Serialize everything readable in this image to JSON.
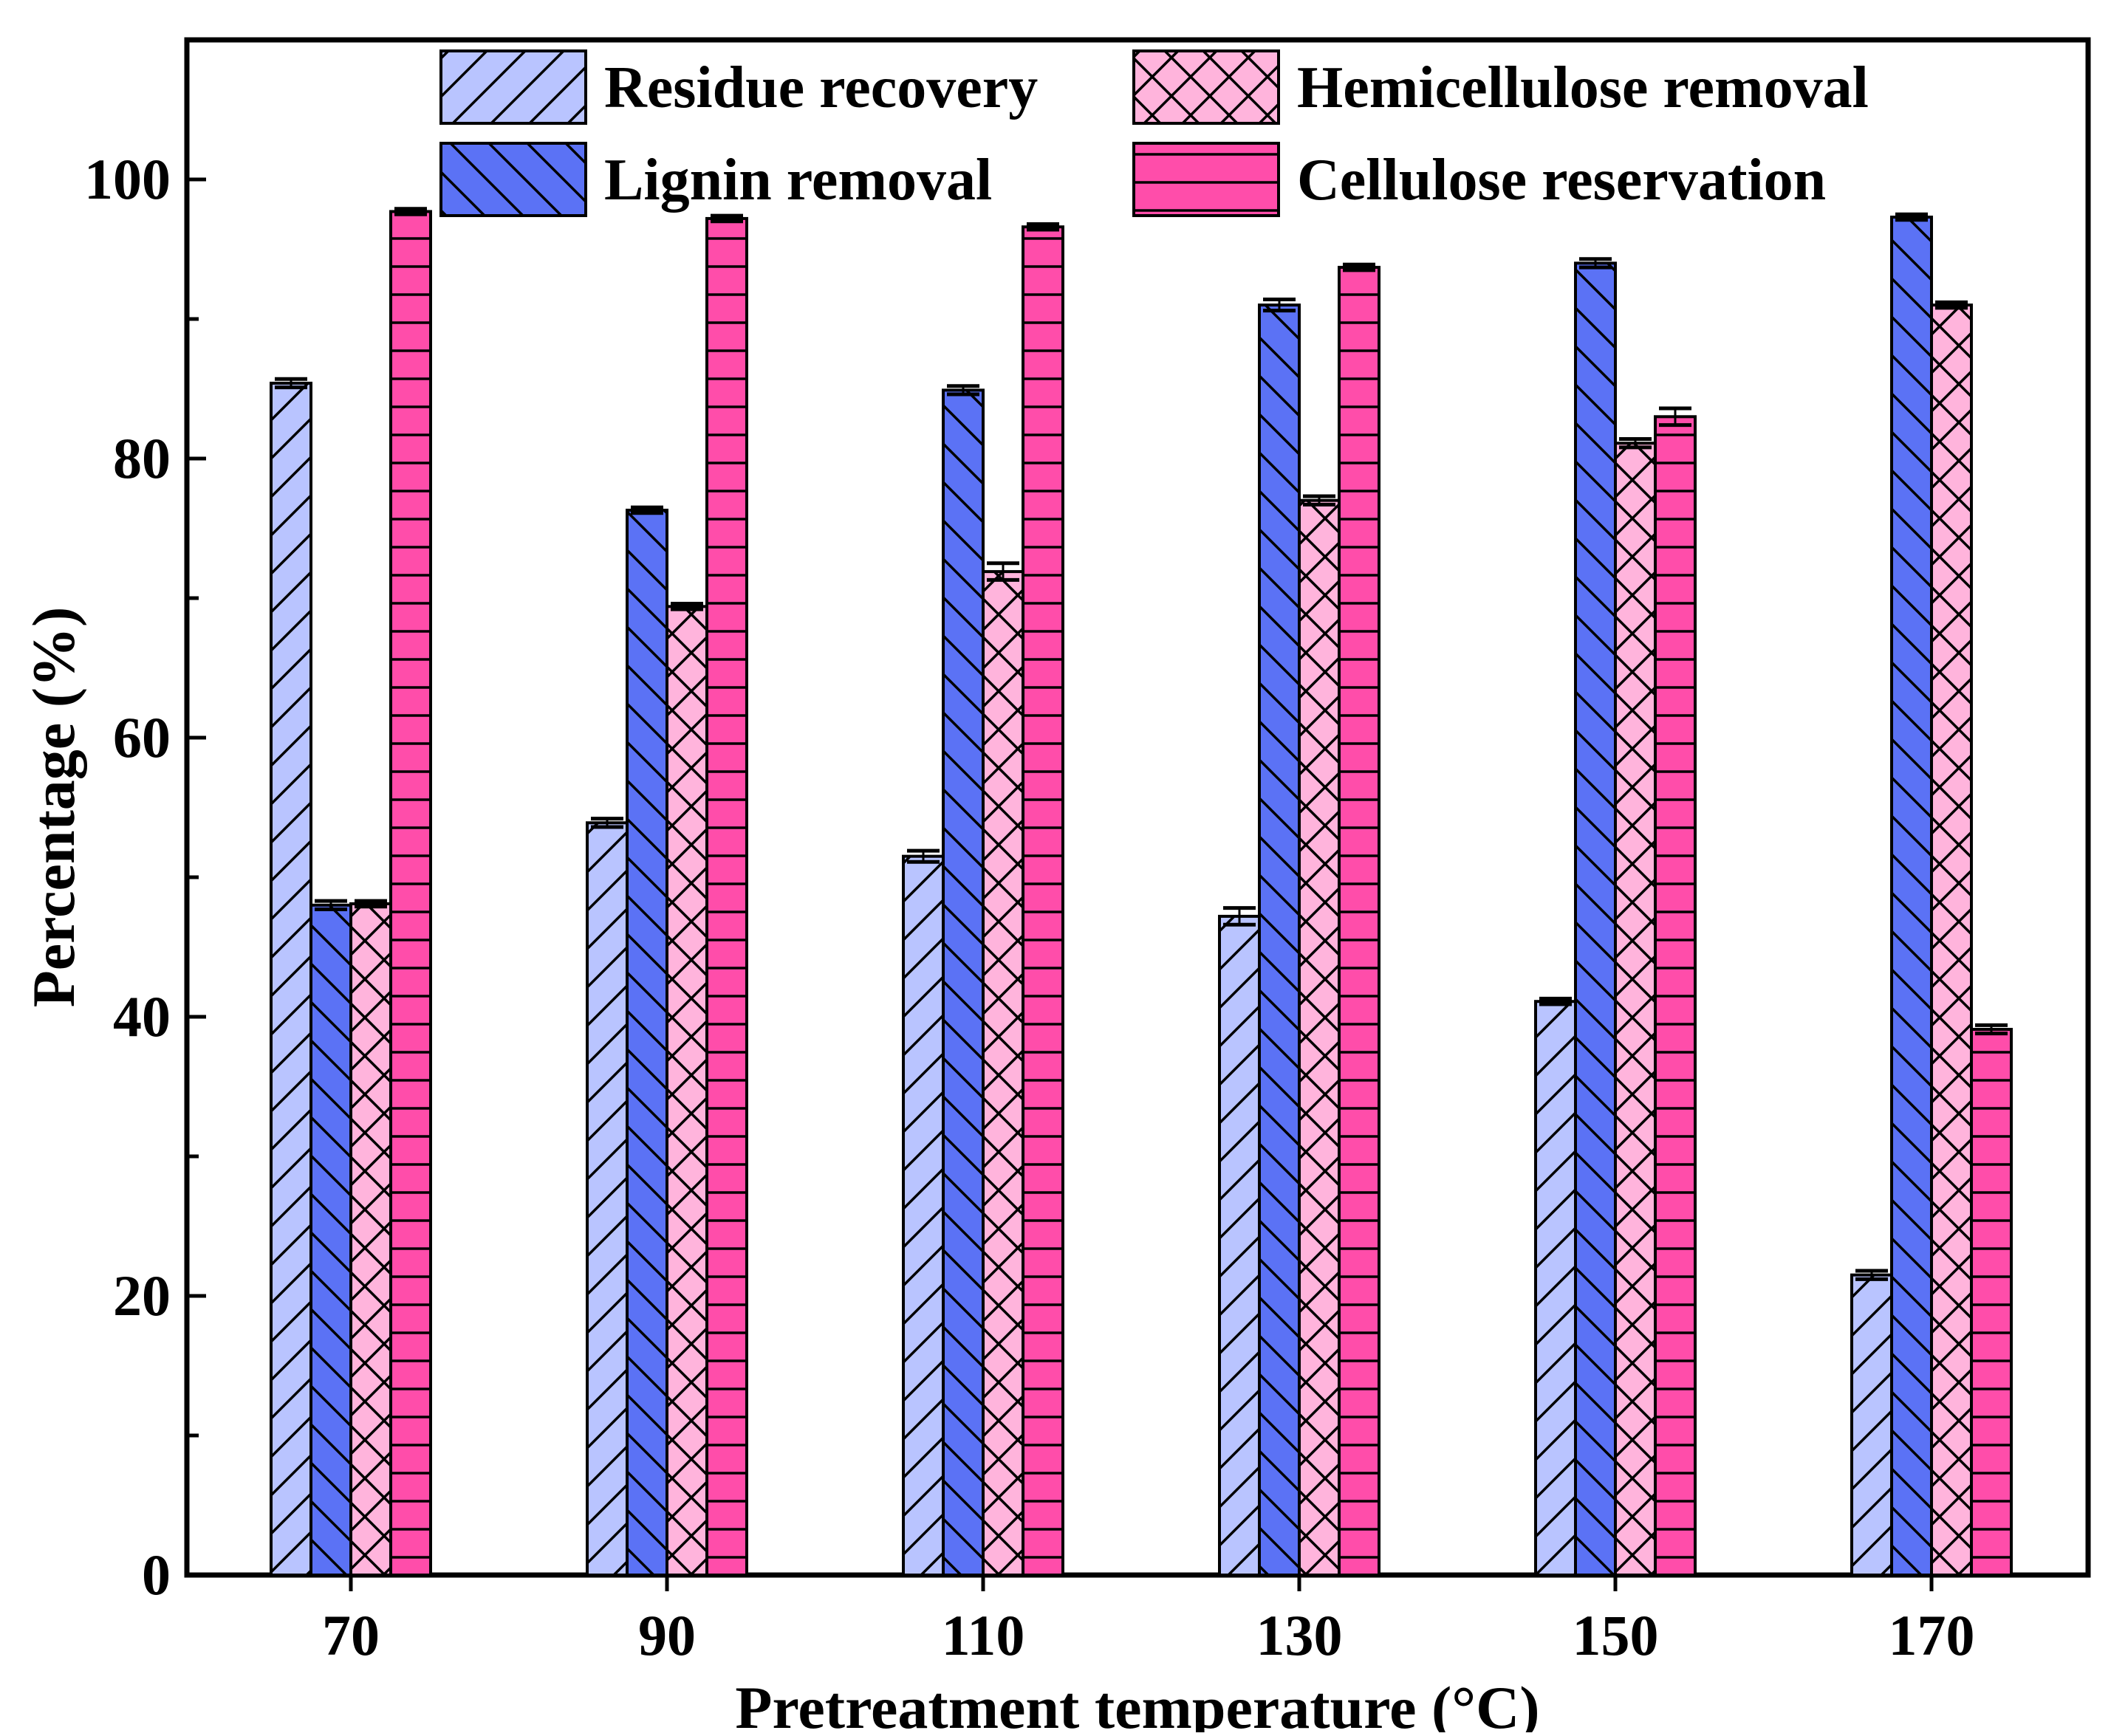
{
  "chart_data": {
    "type": "bar",
    "title": "",
    "xlabel": "Pretreatment temperature (°C)",
    "ylabel": "Percentage (%)",
    "categories": [
      "70",
      "90",
      "110",
      "130",
      "150",
      "170"
    ],
    "ylim": [
      0,
      110
    ],
    "yticks": [
      "0",
      "20",
      "40",
      "60",
      "80",
      "100"
    ],
    "legend_position": "top",
    "series": [
      {
        "name": "Residue recovery",
        "color": "#B9C4FF",
        "pattern": "diagonal-forward",
        "values": [
          85.4,
          53.9,
          51.5,
          47.2,
          41.1,
          21.5
        ],
        "errors": [
          0.3,
          0.3,
          0.4,
          0.6,
          0.2,
          0.3
        ]
      },
      {
        "name": "Lignin removal",
        "color": "#5B72F5",
        "pattern": "diagonal-backward",
        "values": [
          48.0,
          76.3,
          84.9,
          91.0,
          94.0,
          97.3
        ],
        "errors": [
          0.3,
          0.2,
          0.3,
          0.4,
          0.3,
          0.2
        ]
      },
      {
        "name": "Hemicellulose removal",
        "color": "#FFB4DC",
        "pattern": "crosshatch",
        "values": [
          48.1,
          69.4,
          71.9,
          77.0,
          81.1,
          91.0
        ],
        "errors": [
          0.2,
          0.2,
          0.6,
          0.3,
          0.3,
          0.2
        ]
      },
      {
        "name": "Cellulose reservation",
        "color": "#FF4DAA",
        "pattern": "horizontal",
        "values": [
          97.7,
          97.2,
          96.6,
          93.7,
          83.0,
          39.1
        ],
        "errors": [
          0.2,
          0.2,
          0.2,
          0.2,
          0.6,
          0.3
        ]
      }
    ]
  }
}
